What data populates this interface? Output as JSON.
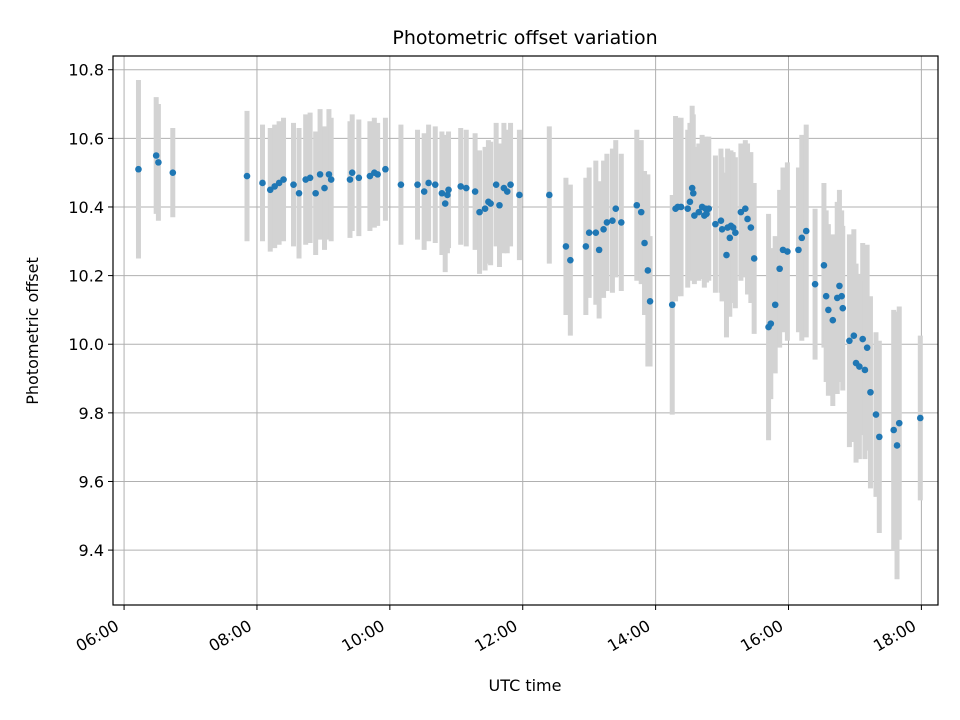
{
  "chart_data": {
    "type": "scatter",
    "title": "Photometric offset variation",
    "xlabel": "UTC time",
    "ylabel": "Photometric offset",
    "x_is_time": true,
    "xlim": [
      "05:50",
      "18:15"
    ],
    "ylim": [
      9.24,
      10.84
    ],
    "x_ticks": [
      "06:00",
      "08:00",
      "10:00",
      "12:00",
      "14:00",
      "16:00",
      "18:00"
    ],
    "y_ticks": [
      9.4,
      9.6,
      9.8,
      10.0,
      10.2,
      10.4,
      10.6,
      10.8
    ],
    "y_tick_labels": [
      "9.4",
      "9.6",
      "9.8",
      "10.0",
      "10.2",
      "10.4",
      "10.6",
      "10.8"
    ],
    "grid": true,
    "colors": {
      "points": "#1f77b4",
      "errorbars": "#d3d3d3",
      "grid": "#b0b0b0"
    },
    "series": [
      {
        "points": [
          {
            "t": "06:13",
            "y": 10.51,
            "e": 0.26
          },
          {
            "t": "06:29",
            "y": 10.55,
            "e": 0.17
          },
          {
            "t": "06:31",
            "y": 10.53,
            "e": 0.17
          },
          {
            "t": "06:44",
            "y": 10.5,
            "e": 0.13
          },
          {
            "t": "07:51",
            "y": 10.49,
            "e": 0.19
          },
          {
            "t": "08:05",
            "y": 10.47,
            "e": 0.17
          },
          {
            "t": "08:12",
            "y": 10.45,
            "e": 0.18
          },
          {
            "t": "08:16",
            "y": 10.46,
            "e": 0.18
          },
          {
            "t": "08:20",
            "y": 10.47,
            "e": 0.18
          },
          {
            "t": "08:24",
            "y": 10.48,
            "e": 0.18
          },
          {
            "t": "08:33",
            "y": 10.465,
            "e": 0.18
          },
          {
            "t": "08:38",
            "y": 10.44,
            "e": 0.19
          },
          {
            "t": "08:44",
            "y": 10.48,
            "e": 0.19
          },
          {
            "t": "08:48",
            "y": 10.485,
            "e": 0.19
          },
          {
            "t": "08:53",
            "y": 10.44,
            "e": 0.18
          },
          {
            "t": "08:57",
            "y": 10.495,
            "e": 0.19
          },
          {
            "t": "09:01",
            "y": 10.455,
            "e": 0.18
          },
          {
            "t": "09:05",
            "y": 10.495,
            "e": 0.19
          },
          {
            "t": "09:07",
            "y": 10.48,
            "e": 0.18
          },
          {
            "t": "09:24",
            "y": 10.48,
            "e": 0.17
          },
          {
            "t": "09:26",
            "y": 10.5,
            "e": 0.17
          },
          {
            "t": "09:32",
            "y": 10.485,
            "e": 0.17
          },
          {
            "t": "09:42",
            "y": 10.49,
            "e": 0.16
          },
          {
            "t": "09:46",
            "y": 10.5,
            "e": 0.16
          },
          {
            "t": "09:49",
            "y": 10.495,
            "e": 0.15
          },
          {
            "t": "09:56",
            "y": 10.51,
            "e": 0.15
          },
          {
            "t": "10:10",
            "y": 10.465,
            "e": 0.175
          },
          {
            "t": "10:25",
            "y": 10.465,
            "e": 0.16
          },
          {
            "t": "10:31",
            "y": 10.445,
            "e": 0.17
          },
          {
            "t": "10:35",
            "y": 10.47,
            "e": 0.17
          },
          {
            "t": "10:41",
            "y": 10.465,
            "e": 0.17
          },
          {
            "t": "10:47",
            "y": 10.44,
            "e": 0.18
          },
          {
            "t": "10:50",
            "y": 10.41,
            "e": 0.2
          },
          {
            "t": "10:52",
            "y": 10.435,
            "e": 0.17
          },
          {
            "t": "10:53",
            "y": 10.45,
            "e": 0.17
          },
          {
            "t": "11:04",
            "y": 10.46,
            "e": 0.17
          },
          {
            "t": "11:09",
            "y": 10.455,
            "e": 0.17
          },
          {
            "t": "11:17",
            "y": 10.445,
            "e": 0.17
          },
          {
            "t": "11:21",
            "y": 10.385,
            "e": 0.18
          },
          {
            "t": "11:26",
            "y": 10.395,
            "e": 0.18
          },
          {
            "t": "11:29",
            "y": 10.415,
            "e": 0.18
          },
          {
            "t": "11:31",
            "y": 10.41,
            "e": 0.18
          },
          {
            "t": "11:36",
            "y": 10.465,
            "e": 0.18
          },
          {
            "t": "11:39",
            "y": 10.405,
            "e": 0.18
          },
          {
            "t": "11:43",
            "y": 10.455,
            "e": 0.19
          },
          {
            "t": "11:46",
            "y": 10.445,
            "e": 0.18
          },
          {
            "t": "11:49",
            "y": 10.465,
            "e": 0.18
          },
          {
            "t": "11:57",
            "y": 10.435,
            "e": 0.19
          },
          {
            "t": "12:24",
            "y": 10.435,
            "e": 0.2
          },
          {
            "t": "12:39",
            "y": 10.285,
            "e": 0.2
          },
          {
            "t": "12:43",
            "y": 10.245,
            "e": 0.22
          },
          {
            "t": "12:57",
            "y": 10.285,
            "e": 0.2
          },
          {
            "t": "13:00",
            "y": 10.325,
            "e": 0.19
          },
          {
            "t": "13:06",
            "y": 10.325,
            "e": 0.21
          },
          {
            "t": "13:09",
            "y": 10.275,
            "e": 0.2
          },
          {
            "t": "13:13",
            "y": 10.335,
            "e": 0.2
          },
          {
            "t": "13:16",
            "y": 10.355,
            "e": 0.2
          },
          {
            "t": "13:21",
            "y": 10.36,
            "e": 0.21
          },
          {
            "t": "13:24",
            "y": 10.395,
            "e": 0.2
          },
          {
            "t": "13:29",
            "y": 10.355,
            "e": 0.2
          },
          {
            "t": "13:43",
            "y": 10.405,
            "e": 0.22
          },
          {
            "t": "13:47",
            "y": 10.385,
            "e": 0.21
          },
          {
            "t": "13:50",
            "y": 10.295,
            "e": 0.21
          },
          {
            "t": "13:53",
            "y": 10.215,
            "e": 0.28
          },
          {
            "t": "13:55",
            "y": 10.125,
            "e": 0.19
          },
          {
            "t": "14:15",
            "y": 10.115,
            "e": 0.32
          },
          {
            "t": "14:18",
            "y": 10.395,
            "e": 0.27
          },
          {
            "t": "14:20",
            "y": 10.4,
            "e": 0.26
          },
          {
            "t": "14:23",
            "y": 10.4,
            "e": 0.26
          },
          {
            "t": "14:29",
            "y": 10.395,
            "e": 0.23
          },
          {
            "t": "14:31",
            "y": 10.415,
            "e": 0.23
          },
          {
            "t": "14:33",
            "y": 10.455,
            "e": 0.24
          },
          {
            "t": "14:34",
            "y": 10.44,
            "e": 0.23
          },
          {
            "t": "14:35",
            "y": 10.375,
            "e": 0.2
          },
          {
            "t": "14:39",
            "y": 10.385,
            "e": 0.2
          },
          {
            "t": "14:42",
            "y": 10.4,
            "e": 0.21
          },
          {
            "t": "14:44",
            "y": 10.375,
            "e": 0.21
          },
          {
            "t": "14:45",
            "y": 10.395,
            "e": 0.21
          },
          {
            "t": "14:46",
            "y": 10.38,
            "e": 0.2
          },
          {
            "t": "14:48",
            "y": 10.395,
            "e": 0.21
          },
          {
            "t": "14:54",
            "y": 10.35,
            "e": 0.2
          },
          {
            "t": "14:59",
            "y": 10.36,
            "e": 0.21
          },
          {
            "t": "15:00",
            "y": 10.335,
            "e": 0.21
          },
          {
            "t": "15:04",
            "y": 10.26,
            "e": 0.24
          },
          {
            "t": "15:05",
            "y": 10.34,
            "e": 0.23
          },
          {
            "t": "15:07",
            "y": 10.31,
            "e": 0.23
          },
          {
            "t": "15:08",
            "y": 10.345,
            "e": 0.22
          },
          {
            "t": "15:10",
            "y": 10.34,
            "e": 0.22
          },
          {
            "t": "15:12",
            "y": 10.325,
            "e": 0.22
          },
          {
            "t": "15:17",
            "y": 10.385,
            "e": 0.2
          },
          {
            "t": "15:21",
            "y": 10.395,
            "e": 0.2
          },
          {
            "t": "15:23",
            "y": 10.365,
            "e": 0.22
          },
          {
            "t": "15:26",
            "y": 10.34,
            "e": 0.22
          },
          {
            "t": "15:29",
            "y": 10.25,
            "e": 0.22
          },
          {
            "t": "15:42",
            "y": 10.05,
            "e": 0.33
          },
          {
            "t": "15:44",
            "y": 10.06,
            "e": 0.22
          },
          {
            "t": "15:48",
            "y": 10.115,
            "e": 0.2
          },
          {
            "t": "15:52",
            "y": 10.22,
            "e": 0.23
          },
          {
            "t": "15:55",
            "y": 10.275,
            "e": 0.24
          },
          {
            "t": "15:59",
            "y": 10.27,
            "e": 0.26
          },
          {
            "t": "16:09",
            "y": 10.275,
            "e": 0.24
          },
          {
            "t": "16:12",
            "y": 10.31,
            "e": 0.3
          },
          {
            "t": "16:16",
            "y": 10.33,
            "e": 0.31
          },
          {
            "t": "16:24",
            "y": 10.175,
            "e": 0.22
          },
          {
            "t": "16:32",
            "y": 10.23,
            "e": 0.24
          },
          {
            "t": "16:34",
            "y": 10.14,
            "e": 0.25
          },
          {
            "t": "16:36",
            "y": 10.1,
            "e": 0.25
          },
          {
            "t": "16:40",
            "y": 10.07,
            "e": 0.25
          },
          {
            "t": "16:44",
            "y": 10.135,
            "e": 0.28
          },
          {
            "t": "16:46",
            "y": 10.17,
            "e": 0.28
          },
          {
            "t": "16:48",
            "y": 10.14,
            "e": 0.25
          },
          {
            "t": "16:49",
            "y": 10.105,
            "e": 0.24
          },
          {
            "t": "16:55",
            "y": 10.01,
            "e": 0.31
          },
          {
            "t": "16:59",
            "y": 10.025,
            "e": 0.31
          },
          {
            "t": "17:01",
            "y": 9.945,
            "e": 0.29
          },
          {
            "t": "17:04",
            "y": 9.935,
            "e": 0.27
          },
          {
            "t": "17:07",
            "y": 10.015,
            "e": 0.28
          },
          {
            "t": "17:09",
            "y": 9.925,
            "e": 0.26
          },
          {
            "t": "17:11",
            "y": 9.99,
            "e": 0.3
          },
          {
            "t": "17:14",
            "y": 9.86,
            "e": 0.28
          },
          {
            "t": "17:19",
            "y": 9.795,
            "e": 0.24
          },
          {
            "t": "17:22",
            "y": 9.73,
            "e": 0.28
          },
          {
            "t": "17:35",
            "y": 9.75,
            "e": 0.35
          },
          {
            "t": "17:38",
            "y": 9.705,
            "e": 0.39
          },
          {
            "t": "17:40",
            "y": 9.77,
            "e": 0.34
          },
          {
            "t": "17:59",
            "y": 9.785,
            "e": 0.24
          }
        ]
      }
    ]
  }
}
